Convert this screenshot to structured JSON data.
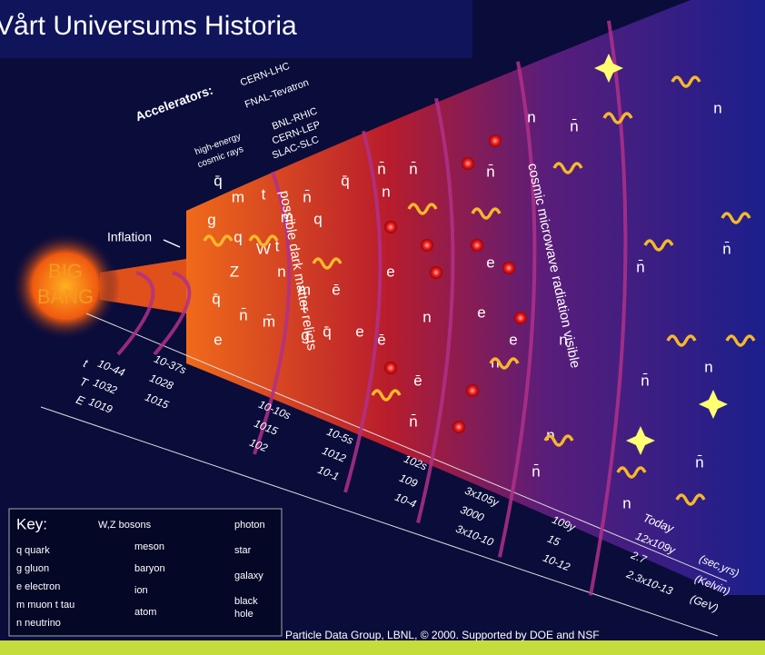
{
  "title": "Vårt Universums Historia",
  "accelerators": {
    "label": "Accelerators:",
    "items": [
      "CERN-LHC",
      "FNAL-Tevatron",
      "BNL-RHIC",
      "CERN-LEP",
      "SLAC-SLC"
    ],
    "cosmic": [
      "high-energy",
      "cosmic rays"
    ]
  },
  "inflation": "Inflation",
  "big_bang": [
    "BIG",
    "BANG"
  ],
  "eras": [
    "possible dark matter relicts",
    "cosmic microwave radiation visible"
  ],
  "timeline": {
    "row_labels": [
      "t",
      "T",
      "E"
    ],
    "columns": [
      [
        "10-44",
        "1032",
        "1019"
      ],
      [
        "10-37s",
        "1028",
        "1015"
      ],
      [
        "10-10s",
        "1015",
        "102"
      ],
      [
        "10-5s",
        "1012",
        "10-1"
      ],
      [
        "102s",
        "109",
        "10-4"
      ],
      [
        "3x105y",
        "3000",
        "3x10-10"
      ],
      [
        "109y",
        "15",
        "10-12"
      ],
      [
        "12x109y",
        "2.7",
        "2.3x10-13"
      ]
    ],
    "today": "Today",
    "units": [
      "(sec,yrs)",
      "(Kelvin)",
      "(GeV)"
    ]
  },
  "particles": [
    "q̄",
    "m",
    "t",
    "n̄",
    "q̄",
    "g",
    "q",
    "m̄",
    "q",
    "W",
    "Z",
    "t",
    "q̄",
    "n",
    "m",
    "ē",
    "e",
    "n̄",
    "m̄",
    "t̄",
    "g",
    "q̄",
    "e",
    "n̄",
    "e",
    "n",
    "ē",
    "n̄",
    "n",
    "e",
    "n",
    "ē",
    "n̄",
    "e",
    "n̄",
    "e",
    "n",
    "n̄",
    "n",
    "n̄",
    "n",
    "n̄",
    "n",
    "n̄",
    "n",
    "n̄",
    "n",
    "n̄"
  ],
  "key": {
    "title": "Key:",
    "left": [
      "q quark",
      "g gluon",
      "e electron",
      "m muon t tau",
      "n neutrino"
    ],
    "middle": [
      "W,Z bosons",
      "meson",
      "baryon",
      "ion",
      "atom"
    ],
    "right": [
      "photon",
      "star",
      "galaxy",
      "black",
      "hole"
    ]
  },
  "credit": "Particle Data Group, LBNL, © 2000.   Supported by DOE and NSF"
}
